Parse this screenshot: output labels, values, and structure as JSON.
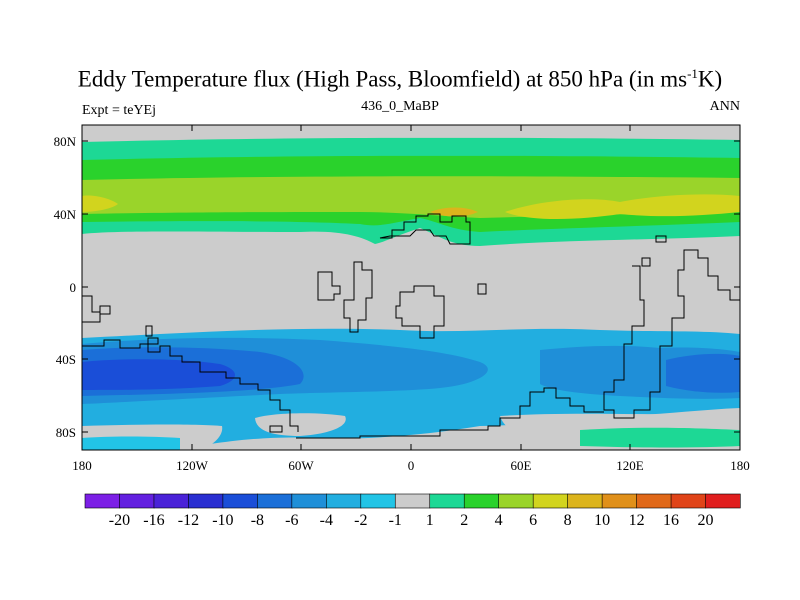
{
  "title": {
    "main": "Eddy Temperature flux (High Pass, Bloomfield) at 850 hPa (in ms",
    "sup": "-1",
    "end": "K)"
  },
  "subtitle_left": "Expt = teYEj",
  "subtitle_center": "436_0_MaBP",
  "subtitle_right": "ANN",
  "map": {
    "lat_ticks": [
      "80N",
      "40N",
      "0",
      "40S",
      "80S"
    ],
    "lon_ticks": [
      "180",
      "120W",
      "60W",
      "0",
      "60E",
      "120E",
      "180"
    ]
  },
  "colorbar": {
    "colors": [
      "#7c1fe6",
      "#6320e0",
      "#4a22d8",
      "#2a2fd1",
      "#1a4ed8",
      "#1b6fd8",
      "#1f8fd8",
      "#22aee0",
      "#22c4e6",
      "#cccccc",
      "#1dd895",
      "#2ad22c",
      "#9ad42a",
      "#d2d41e",
      "#dcb41c",
      "#e0901a",
      "#e06818",
      "#e04418",
      "#e01e1e"
    ],
    "labels": [
      "-20",
      "-16",
      "-12",
      "-10",
      "-8",
      "-6",
      "-4",
      "-2",
      "-1",
      "1",
      "2",
      "4",
      "6",
      "8",
      "10",
      "12",
      "16",
      "20"
    ]
  }
}
